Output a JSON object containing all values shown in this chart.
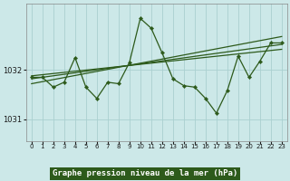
{
  "title": "Graphe pression niveau de la mer (hPa)",
  "bg_color": "#cce8e8",
  "plot_bg": "#cce8e8",
  "label_bg": "#2d5a1b",
  "label_fg": "#ffffff",
  "grid_color": "#aad0d0",
  "line_color": "#2d5a1b",
  "marker_color": "#2d5a1b",
  "xlim": [
    -0.5,
    23.5
  ],
  "ylim": [
    1030.55,
    1033.35
  ],
  "yticks": [
    1031,
    1032
  ],
  "xticks": [
    0,
    1,
    2,
    3,
    4,
    5,
    6,
    7,
    8,
    9,
    10,
    11,
    12,
    13,
    14,
    15,
    16,
    17,
    18,
    19,
    20,
    21,
    22,
    23
  ],
  "main_x": [
    0,
    1,
    2,
    3,
    4,
    5,
    6,
    7,
    8,
    9,
    10,
    11,
    12,
    13,
    14,
    15,
    16,
    17,
    18,
    19,
    20,
    21,
    22,
    23
  ],
  "main_y": [
    1031.85,
    1031.85,
    1031.65,
    1031.75,
    1032.25,
    1031.65,
    1031.42,
    1031.75,
    1031.72,
    1032.15,
    1033.05,
    1032.85,
    1032.35,
    1031.82,
    1031.68,
    1031.65,
    1031.42,
    1031.12,
    1031.58,
    1032.28,
    1031.85,
    1032.18,
    1032.55,
    1032.55
  ],
  "trend1_x": [
    0,
    23
  ],
  "trend1_y": [
    1031.88,
    1032.42
  ],
  "trend2_x": [
    0,
    23
  ],
  "trend2_y": [
    1031.82,
    1032.52
  ],
  "trend3_x": [
    0,
    23
  ],
  "trend3_y": [
    1031.72,
    1032.68
  ]
}
